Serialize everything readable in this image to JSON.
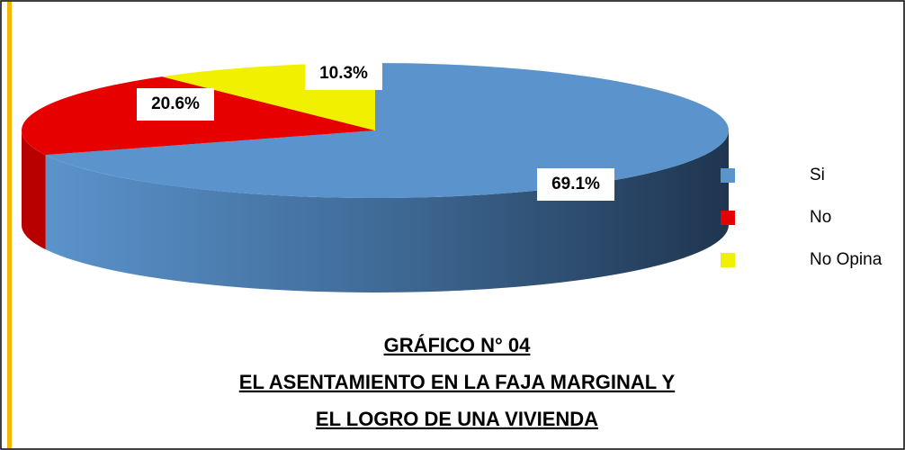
{
  "chart_data": {
    "type": "pie",
    "title": [
      "GRÁFICO N° 04",
      "EL ASENTAMIENTO EN LA FAJA MARGINAL Y",
      "EL LOGRO DE UNA VIVIENDA"
    ],
    "categories": [
      "Si",
      "No",
      "No Opina"
    ],
    "values": [
      69.1,
      20.6,
      10.3
    ],
    "value_labels": [
      "69.1%",
      "20.6%",
      "10.3%"
    ],
    "colors": [
      "#5b93cc",
      "#e60000",
      "#f0f000"
    ],
    "legend": "right"
  }
}
